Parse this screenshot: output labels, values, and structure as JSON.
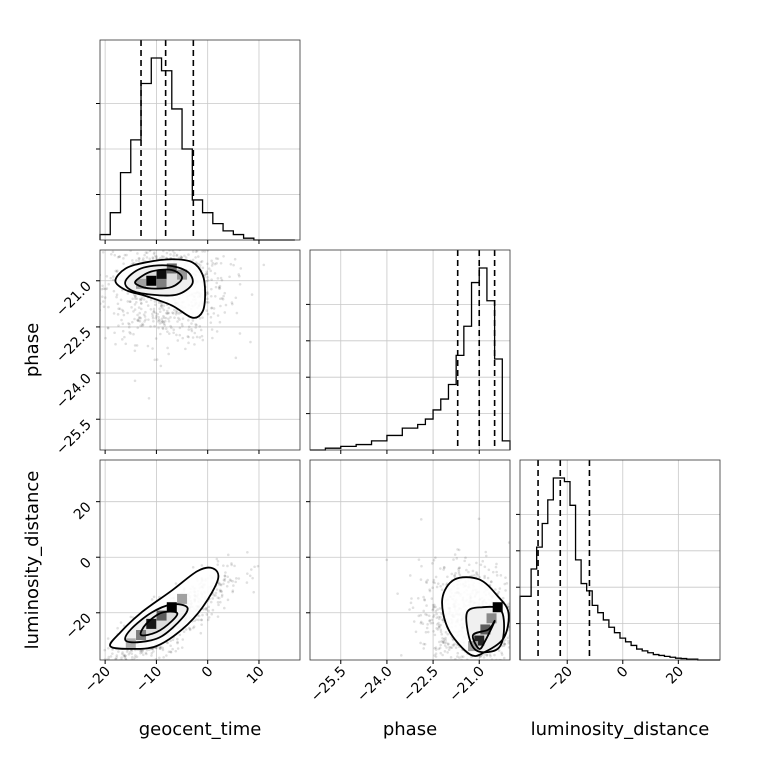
{
  "chart_data": {
    "type": "corner",
    "parameters": [
      "geocent_time",
      "phase",
      "luminosity_distance"
    ],
    "axis_labels": {
      "x": [
        "geocent_time",
        "phase",
        "luminosity_distance"
      ],
      "y": [
        "phase",
        "luminosity_distance"
      ]
    },
    "grid": true,
    "ranges": {
      "geocent_time": [
        -21,
        18
      ],
      "phase": [
        -26.5,
        -20.0
      ],
      "luminosity_distance": [
        -37,
        35
      ]
    },
    "ticks": {
      "geocent_time": [
        -20,
        -10,
        0,
        10
      ],
      "phase": [
        -25.5,
        -24.0,
        -22.5,
        -21.0
      ],
      "luminosity_distance": [
        -20,
        0,
        20
      ]
    },
    "tick_labels": {
      "geocent_time": [
        "−20",
        "−10",
        "0",
        "10"
      ],
      "phase": [
        "−25.5",
        "−24.0",
        "−22.5",
        "−21.0"
      ],
      "luminosity_distance": [
        "−20",
        "0",
        "20"
      ]
    },
    "diag_y_ticks": [
      [
        0.25,
        0.5,
        0.75
      ],
      [
        0.2,
        0.4,
        0.6,
        0.8
      ],
      [
        0.2,
        0.4,
        0.6,
        0.8
      ]
    ],
    "quantiles": {
      "geocent_time": [
        -13.0,
        -8.2,
        -2.8
      ],
      "phase": [
        -21.7,
        -21.0,
        -20.5
      ],
      "luminosity_distance": [
        -30.5,
        -22.5,
        -12.0
      ]
    },
    "histograms": [
      {
        "parameter": "geocent_time",
        "edges": [
          -21,
          -19,
          -17,
          -15,
          -13,
          -11,
          -9,
          -7,
          -5,
          -3,
          -1,
          1,
          3,
          5,
          7,
          9,
          11,
          13,
          15,
          17
        ],
        "values": [
          0.03,
          0.15,
          0.37,
          0.55,
          0.86,
          1.0,
          0.93,
          0.72,
          0.5,
          0.22,
          0.15,
          0.09,
          0.05,
          0.03,
          0.01,
          0.0,
          0.0,
          0.0,
          0.0
        ]
      },
      {
        "parameter": "phase",
        "edges": [
          -26.5,
          -26.0,
          -25.5,
          -25.0,
          -24.5,
          -24.0,
          -23.5,
          -23.0,
          -22.75,
          -22.5,
          -22.25,
          -22.0,
          -21.75,
          -21.5,
          -21.25,
          -21.0,
          -20.75,
          -20.5,
          -20.25,
          -20.0
        ],
        "values": [
          0.0,
          0.01,
          0.02,
          0.03,
          0.05,
          0.08,
          0.12,
          0.14,
          0.17,
          0.22,
          0.28,
          0.36,
          0.52,
          0.68,
          0.92,
          1.0,
          0.82,
          0.5,
          0.05
        ]
      },
      {
        "parameter": "luminosity_distance",
        "edges": [
          -37,
          -33,
          -31,
          -29,
          -27,
          -25,
          -23,
          -21,
          -19,
          -17,
          -15,
          -13,
          -11,
          -9,
          -7,
          -5,
          -3,
          -1,
          1,
          3,
          5,
          7,
          9,
          11,
          13,
          15,
          17,
          19,
          21,
          23,
          27,
          31,
          35
        ],
        "values": [
          0.35,
          0.5,
          0.62,
          0.75,
          0.88,
          1.0,
          1.0,
          0.98,
          0.85,
          0.55,
          0.42,
          0.38,
          0.3,
          0.26,
          0.22,
          0.18,
          0.15,
          0.12,
          0.1,
          0.08,
          0.06,
          0.05,
          0.04,
          0.03,
          0.025,
          0.02,
          0.015,
          0.01,
          0.008,
          0.005,
          0.0,
          0.0
        ]
      }
    ],
    "scatter_panels": [
      {
        "x": "geocent_time",
        "y": "phase",
        "center": [
          -8,
          -21.2
        ],
        "spread": [
          6,
          0.9
        ],
        "contours": [
          [
            [
              -18,
              -21.0
            ],
            [
              -16,
              -20.6
            ],
            [
              -12,
              -20.4
            ],
            [
              -7,
              -20.3
            ],
            [
              -3,
              -20.4
            ],
            [
              -1,
              -20.8
            ],
            [
              -0.5,
              -21.4
            ],
            [
              -1,
              -22.0
            ],
            [
              -3,
              -22.2
            ],
            [
              -7,
              -21.8
            ],
            [
              -12,
              -21.5
            ],
            [
              -16,
              -21.3
            ]
          ],
          [
            [
              -16,
              -21.0
            ],
            [
              -13,
              -20.6
            ],
            [
              -8,
              -20.5
            ],
            [
              -4,
              -20.7
            ],
            [
              -3,
              -21.1
            ],
            [
              -6,
              -21.45
            ],
            [
              -11,
              -21.45
            ],
            [
              -15,
              -21.3
            ]
          ],
          [
            [
              -14,
              -21.0
            ],
            [
              -11,
              -20.7
            ],
            [
              -7,
              -20.65
            ],
            [
              -5,
              -20.9
            ],
            [
              -7,
              -21.2
            ],
            [
              -11,
              -21.25
            ],
            [
              -13.5,
              -21.15
            ]
          ]
        ],
        "hist2d": [
          {
            "x": -11,
            "y": -21.0,
            "v": 1.0
          },
          {
            "x": -9,
            "y": -20.8,
            "v": 0.95
          },
          {
            "x": -7,
            "y": -20.6,
            "v": 0.55
          },
          {
            "x": -5,
            "y": -20.8,
            "v": 0.35
          },
          {
            "x": -9,
            "y": -21.1,
            "v": 0.45
          },
          {
            "x": -13,
            "y": -21.1,
            "v": 0.3
          }
        ]
      },
      {
        "x": "geocent_time",
        "y": "luminosity_distance",
        "center": [
          -8,
          -24
        ],
        "spread": [
          6,
          9
        ],
        "correlation": 0.85,
        "contours": [
          [
            [
              -19,
              -32
            ],
            [
              -15,
              -33
            ],
            [
              -10,
              -32
            ],
            [
              -5,
              -26
            ],
            [
              -1,
              -18
            ],
            [
              2,
              -8
            ],
            [
              1,
              -4
            ],
            [
              -2,
              -5
            ],
            [
              -7,
              -12
            ],
            [
              -13,
              -20
            ],
            [
              -17,
              -27
            ]
          ],
          [
            [
              -16,
              -30
            ],
            [
              -13,
              -30.5
            ],
            [
              -9,
              -28.5
            ],
            [
              -5,
              -22
            ],
            [
              -4,
              -18
            ],
            [
              -7,
              -17
            ],
            [
              -11,
              -20
            ],
            [
              -15,
              -26
            ]
          ],
          [
            [
              -13,
              -28
            ],
            [
              -10,
              -27
            ],
            [
              -7,
              -23
            ],
            [
              -6,
              -20
            ],
            [
              -9,
              -20
            ],
            [
              -12,
              -24
            ]
          ]
        ],
        "hist2d": [
          {
            "x": -7,
            "y": -18,
            "v": 1.0
          },
          {
            "x": -11,
            "y": -24,
            "v": 0.9
          },
          {
            "x": -9,
            "y": -21,
            "v": 0.6
          },
          {
            "x": -13,
            "y": -28,
            "v": 0.45
          },
          {
            "x": -5,
            "y": -15,
            "v": 0.3
          },
          {
            "x": -15,
            "y": -31,
            "v": 0.25
          }
        ]
      },
      {
        "x": "phase",
        "y": "luminosity_distance",
        "center": [
          -21.3,
          -22
        ],
        "spread": [
          0.8,
          10
        ],
        "contours": [
          [
            [
              -21.8,
              -8
            ],
            [
              -22.2,
              -15
            ],
            [
              -22.0,
              -26
            ],
            [
              -21.3,
              -35
            ],
            [
              -20.8,
              -34
            ],
            [
              -20.2,
              -29
            ],
            [
              -20.05,
              -20
            ],
            [
              -20.4,
              -14
            ],
            [
              -21.0,
              -8
            ]
          ],
          [
            [
              -21.4,
              -20
            ],
            [
              -21.3,
              -30
            ],
            [
              -21.0,
              -34
            ],
            [
              -20.4,
              -33
            ],
            [
              -20.2,
              -27
            ],
            [
              -20.3,
              -19
            ],
            [
              -20.9,
              -18
            ]
          ],
          [
            [
              -21.2,
              -28
            ],
            [
              -21.0,
              -33
            ],
            [
              -20.8,
              -30
            ],
            [
              -20.5,
              -23
            ],
            [
              -20.7,
              -26
            ]
          ]
        ],
        "hist2d": [
          {
            "x": -20.4,
            "y": -18,
            "v": 1.0
          },
          {
            "x": -21.0,
            "y": -30,
            "v": 0.85
          },
          {
            "x": -20.8,
            "y": -26,
            "v": 0.6
          },
          {
            "x": -20.6,
            "y": -22,
            "v": 0.4
          },
          {
            "x": -21.2,
            "y": -32,
            "v": 0.3
          }
        ]
      }
    ]
  }
}
